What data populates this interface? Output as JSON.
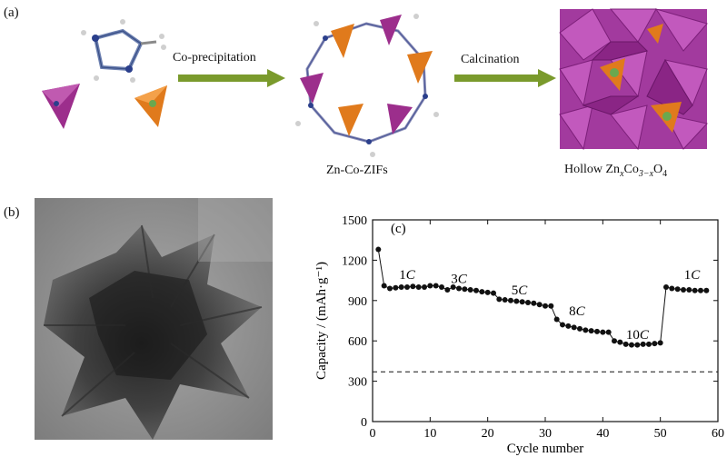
{
  "panel_a": {
    "label": "(a)",
    "step1_label": "Co-precipitation",
    "step2_label": "Calcination",
    "caption_mid": "Zn-Co-ZIFs",
    "caption_right_prefix": "Hollow Zn",
    "caption_right_sub1": "x",
    "caption_right_mid": "Co",
    "caption_right_sub2": "3−x",
    "caption_right_suffix": "O",
    "caption_right_sub3": "4",
    "colors": {
      "arrow": "#7a9a2c",
      "tetra_zn": "#9c2e8c",
      "tetra_co": "#e07a1c",
      "spinel": "#a23a9e"
    }
  },
  "panel_b": {
    "label": "(b)"
  },
  "panel_c": {
    "label": "(c)"
  },
  "chart_data": {
    "type": "scatter",
    "title": "",
    "xlabel": "Cycle number",
    "ylabel": "Capacity / (mAh·g⁻¹)",
    "xlim": [
      0,
      60
    ],
    "ylim": [
      0,
      1500
    ],
    "xticks": [
      0,
      10,
      20,
      30,
      40,
      50,
      60
    ],
    "yticks": [
      0,
      300,
      600,
      900,
      1200,
      1500
    ],
    "reference_line_y": 370,
    "grid": false,
    "rate_labels": [
      {
        "num": "1",
        "unit": "C",
        "x": 6,
        "y": 1060
      },
      {
        "num": "3",
        "unit": "C",
        "x": 15,
        "y": 1030
      },
      {
        "num": "5",
        "unit": "C",
        "x": 25.5,
        "y": 945
      },
      {
        "num": "8",
        "unit": "C",
        "x": 35.5,
        "y": 790
      },
      {
        "num": "10",
        "unit": "C",
        "x": 46,
        "y": 615
      },
      {
        "num": "1",
        "unit": "C",
        "x": 55.5,
        "y": 1060
      }
    ],
    "series": [
      {
        "x": [
          1,
          2,
          3,
          4,
          5,
          6,
          7,
          8,
          9,
          10,
          11,
          12,
          13,
          14,
          15,
          16,
          17,
          18,
          19,
          20,
          21,
          22,
          23,
          24,
          25,
          26,
          27,
          28,
          29,
          30,
          31,
          32,
          33,
          34,
          35,
          36,
          37,
          38,
          39,
          40,
          41,
          42,
          43,
          44,
          45,
          46,
          47,
          48,
          49,
          50,
          51,
          52,
          53,
          54,
          55,
          56,
          57,
          58
        ],
        "values": [
          1280,
          1010,
          990,
          995,
          1000,
          1000,
          1005,
          1000,
          1000,
          1010,
          1010,
          1000,
          980,
          1000,
          990,
          985,
          980,
          975,
          965,
          960,
          955,
          910,
          905,
          900,
          895,
          890,
          885,
          880,
          870,
          860,
          860,
          760,
          720,
          710,
          700,
          690,
          680,
          675,
          670,
          665,
          665,
          600,
          590,
          575,
          570,
          570,
          575,
          575,
          580,
          585,
          1000,
          990,
          985,
          980,
          980,
          975,
          975,
          975
        ]
      }
    ]
  }
}
